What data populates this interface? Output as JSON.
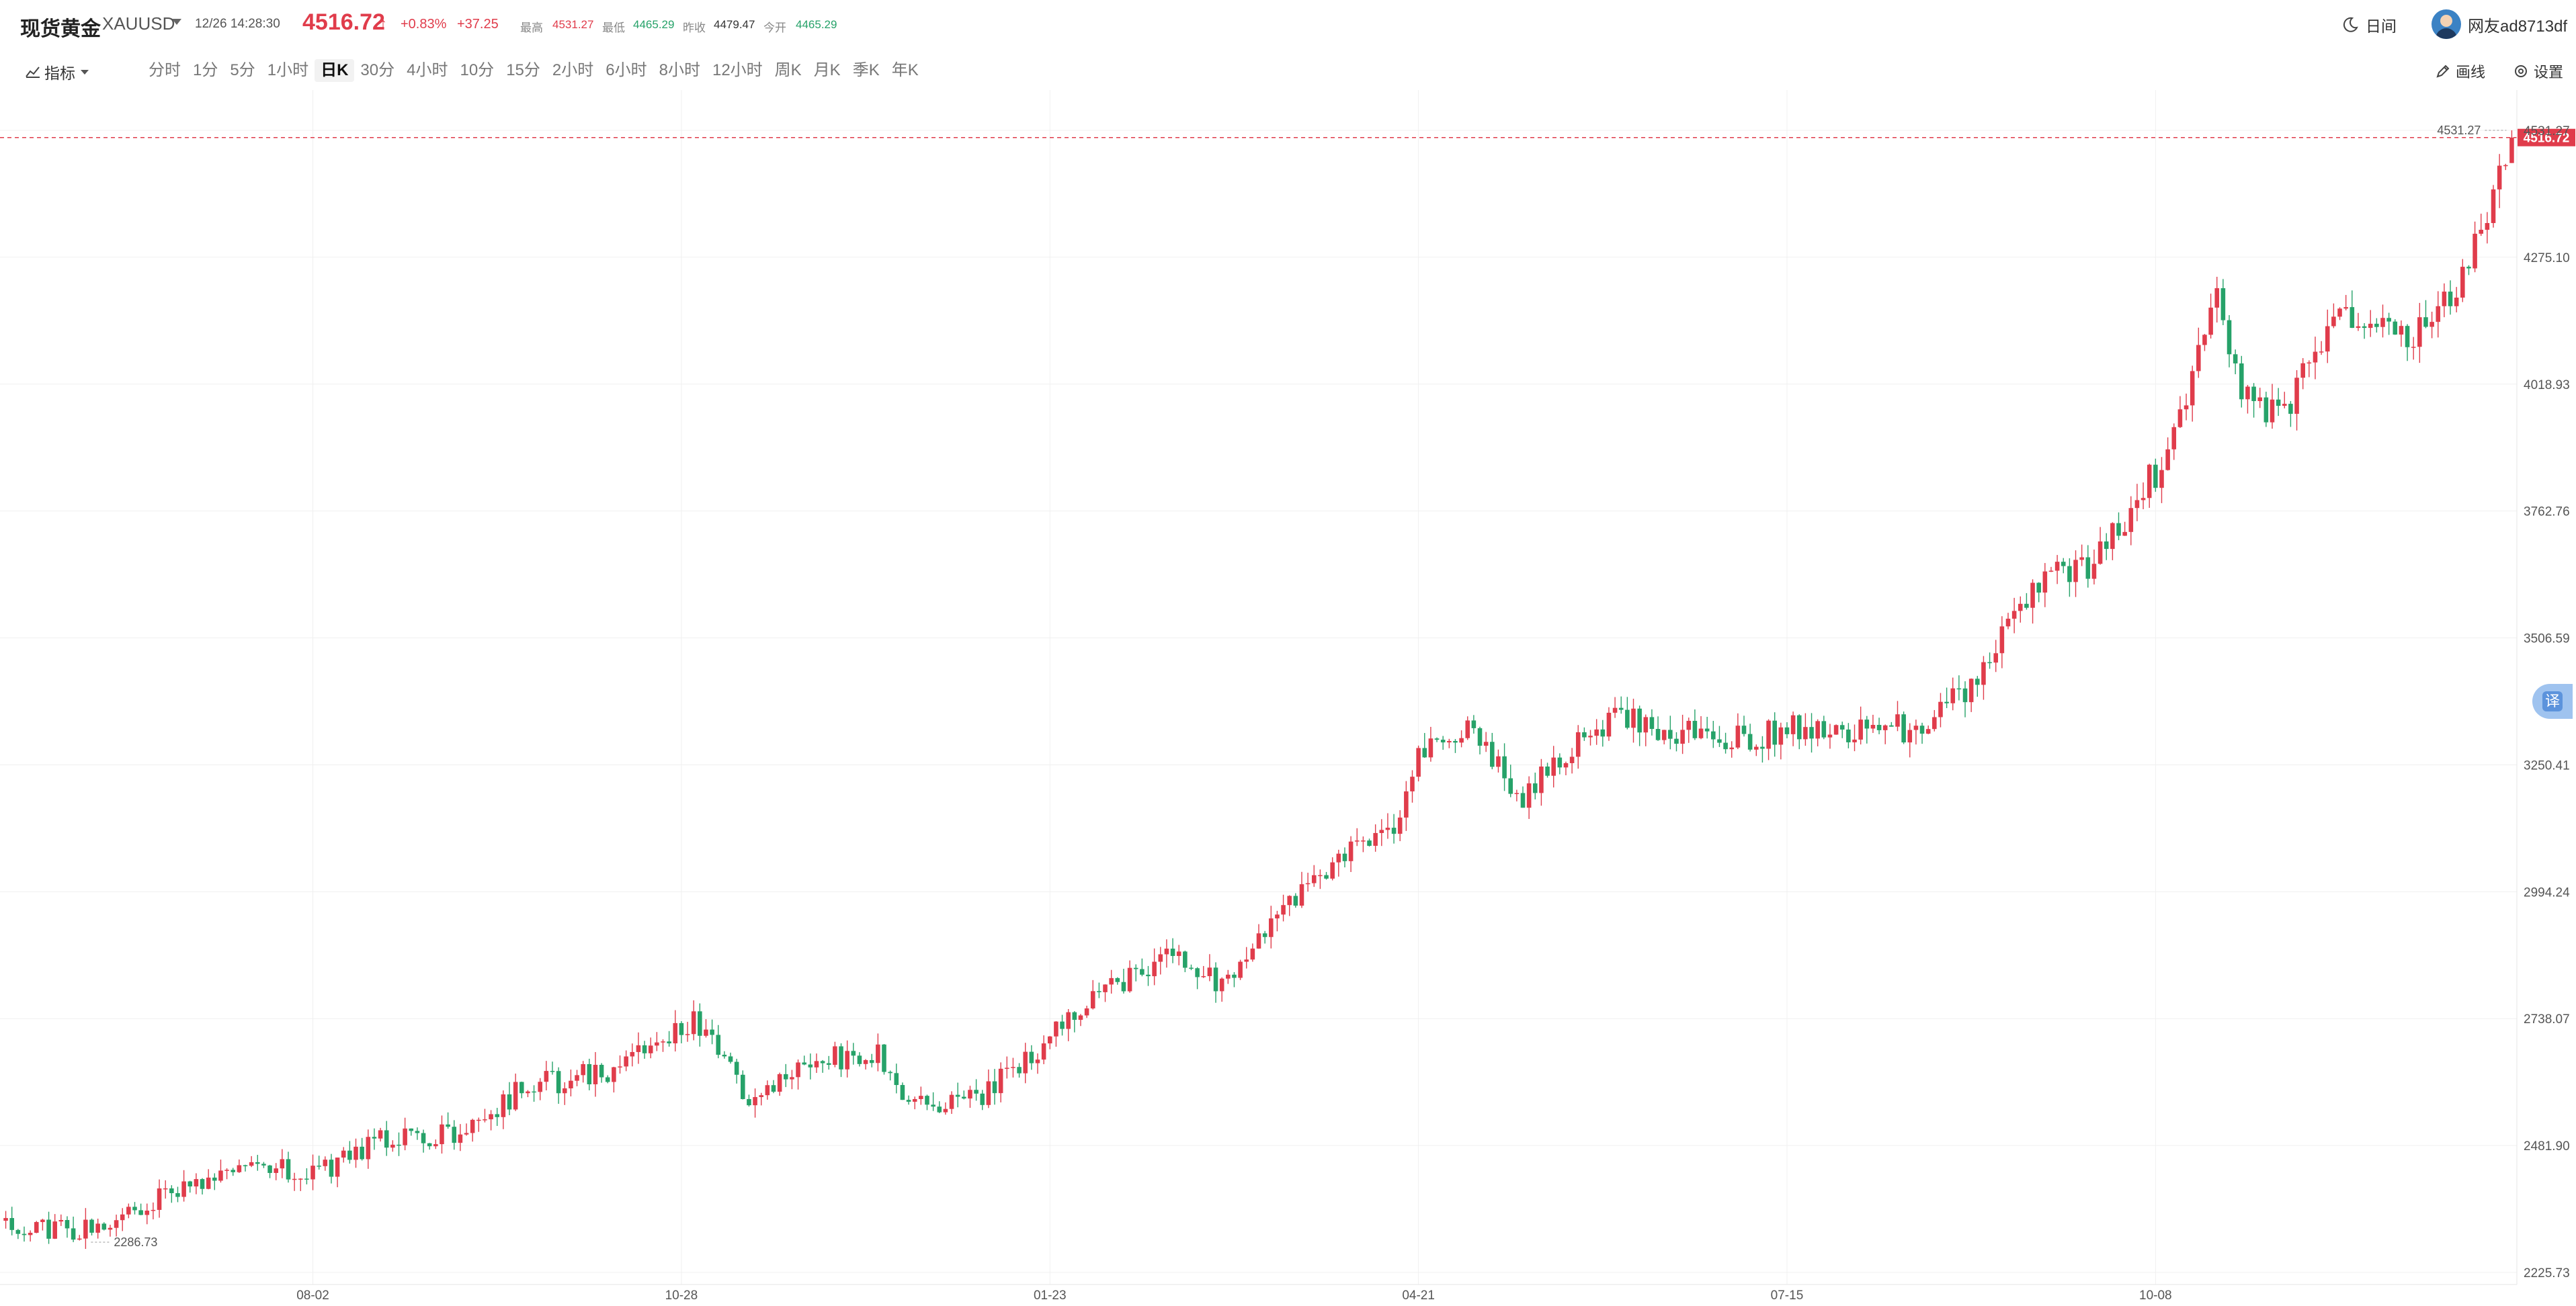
{
  "header": {
    "symbol_name": "现货黄金",
    "symbol_code": "XAUUSD",
    "datetime": "12/26 14:28:30",
    "last_price": "4516.72",
    "change_pct": "+0.83%",
    "change_abs": "+37.25",
    "stats": [
      {
        "label": "最高",
        "value": "4531.27",
        "color": "#e03c4b"
      },
      {
        "label": "最低",
        "value": "4465.29",
        "color": "#26a269"
      },
      {
        "label": "昨收",
        "value": "4479.47",
        "color": "#333333"
      },
      {
        "label": "今开",
        "value": "4465.29",
        "color": "#26a269"
      }
    ],
    "theme_label": "日间",
    "user_name": "网友ad8713df"
  },
  "toolbar": {
    "indicators_label": "指标",
    "periods": [
      "分时",
      "1分",
      "5分",
      "1小时",
      "日K",
      "30分",
      "4小时",
      "10分",
      "15分",
      "2小时",
      "6小时",
      "8小时",
      "12小时",
      "周K",
      "月K",
      "季K",
      "年K"
    ],
    "active_period": "日K",
    "draw_label": "画线",
    "settings_label": "设置"
  },
  "translate_label": "译",
  "colors": {
    "up": "#e03c4b",
    "down": "#26a269",
    "grid": "#f0f0f0",
    "price_line": "#e03c4b"
  },
  "chart_data": {
    "type": "candlestick",
    "y_ticks": [
      "4531.27",
      "4275.10",
      "4018.93",
      "3762.76",
      "3506.59",
      "3250.41",
      "2994.24",
      "2738.07",
      "2481.90",
      "2225.73"
    ],
    "y_range": [
      2225.73,
      4531.27
    ],
    "x_tick_labels": [
      "08-02",
      "10-28",
      "01-23",
      "04-21",
      "07-15",
      "10-08"
    ],
    "x_tick_day_index": [
      50,
      110,
      170,
      230,
      290,
      350
    ],
    "last_price_label": "4516.72",
    "high_marker_label": "4531.27",
    "low_marker_label": "2286.73",
    "grid": true,
    "candle_count": 409,
    "trend_anchors": [
      [
        0,
        2330
      ],
      [
        10,
        2310
      ],
      [
        20,
        2350
      ],
      [
        30,
        2400
      ],
      [
        38,
        2450
      ],
      [
        50,
        2420
      ],
      [
        60,
        2490
      ],
      [
        72,
        2500
      ],
      [
        85,
        2600
      ],
      [
        100,
        2640
      ],
      [
        112,
        2740
      ],
      [
        122,
        2560
      ],
      [
        130,
        2660
      ],
      [
        142,
        2660
      ],
      [
        148,
        2560
      ],
      [
        160,
        2590
      ],
      [
        170,
        2700
      ],
      [
        180,
        2800
      ],
      [
        190,
        2880
      ],
      [
        198,
        2810
      ],
      [
        208,
        2970
      ],
      [
        220,
        3080
      ],
      [
        226,
        3110
      ],
      [
        232,
        3330
      ],
      [
        240,
        3310
      ],
      [
        246,
        3180
      ],
      [
        250,
        3230
      ],
      [
        262,
        3350
      ],
      [
        270,
        3320
      ],
      [
        282,
        3300
      ],
      [
        294,
        3330
      ],
      [
        304,
        3320
      ],
      [
        312,
        3330
      ],
      [
        320,
        3400
      ],
      [
        332,
        3640
      ],
      [
        340,
        3660
      ],
      [
        352,
        3880
      ],
      [
        360,
        4230
      ],
      [
        364,
        3990
      ],
      [
        370,
        3950
      ],
      [
        380,
        4150
      ],
      [
        392,
        4110
      ],
      [
        400,
        4220
      ],
      [
        408,
        4510
      ]
    ],
    "last_candle": {
      "open": 4465.29,
      "high": 4531.27,
      "low": 4465.29,
      "close": 4516.72
    }
  }
}
